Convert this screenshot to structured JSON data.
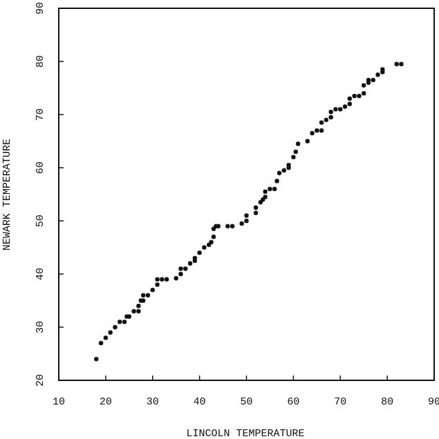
{
  "chart_data": {
    "type": "scatter",
    "x_label": "LINCOLN TEMPERATURE",
    "y_label": "NEWARK TEMPERATURE",
    "x": [
      18,
      19,
      20,
      21,
      22,
      23,
      24,
      24.5,
      25,
      26,
      27,
      27,
      27.5,
      28,
      28,
      29,
      30,
      31,
      31,
      32,
      33,
      35,
      36,
      36,
      37,
      38,
      39,
      39,
      40,
      41,
      42,
      42.5,
      43,
      43,
      43.5,
      44,
      46,
      47,
      49,
      50,
      50,
      52,
      52,
      53,
      53.5,
      54,
      54,
      55,
      56,
      56.5,
      57,
      58,
      59,
      59,
      60,
      60.5,
      61,
      63,
      64,
      65,
      66,
      66,
      67,
      68,
      68,
      69,
      70,
      71,
      72,
      72,
      73,
      74,
      75,
      75,
      76,
      76,
      77,
      78,
      79,
      79,
      82,
      83
    ],
    "values": [
      24,
      27,
      28,
      29,
      30,
      31,
      31,
      32,
      32,
      33,
      33,
      34,
      35,
      35,
      36,
      36,
      37,
      38,
      39,
      39,
      39,
      39.2,
      40,
      41,
      41,
      42,
      43,
      42.5,
      44,
      45,
      45.5,
      46,
      47,
      48.5,
      49,
      49,
      49,
      49,
      49.5,
      50,
      51,
      51.5,
      52.5,
      53.5,
      54,
      54.5,
      55.5,
      56,
      56,
      57.5,
      59,
      59.5,
      60,
      60.5,
      62,
      63,
      64.5,
      65,
      66.5,
      67,
      67,
      68.5,
      69,
      69.5,
      70.5,
      71,
      71,
      71.5,
      72,
      73,
      73.5,
      73.5,
      74,
      75.5,
      76,
      76.5,
      76.5,
      77.5,
      78,
      78.5,
      79.5,
      79.5
    ],
    "color": "#111111",
    "xlim": [
      10,
      90
    ],
    "xticks": [
      10,
      20,
      30,
      40,
      50,
      60,
      70,
      80,
      90
    ],
    "ylim": [
      20,
      90
    ],
    "yticks": [
      20,
      30,
      40,
      50,
      60,
      70,
      80,
      90
    ],
    "grid": false
  }
}
